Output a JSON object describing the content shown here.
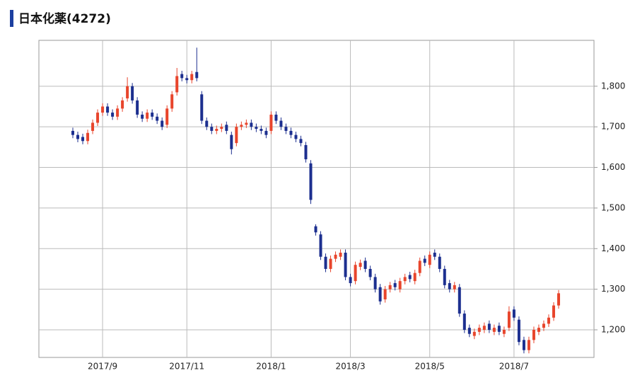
{
  "chart_data": {
    "type": "candlestick",
    "title": "日本化薬(4272)",
    "categories": [
      null,
      null,
      null,
      null,
      null,
      null,
      "2017/9",
      null,
      null,
      null,
      null,
      null,
      null,
      null,
      null,
      null,
      null,
      null,
      null,
      null,
      null,
      null,
      null,
      "2017/11",
      null,
      null,
      null,
      null,
      null,
      null,
      null,
      null,
      null,
      null,
      null,
      null,
      null,
      null,
      null,
      null,
      "2018/1",
      null,
      null,
      null,
      null,
      null,
      null,
      null,
      null,
      null,
      null,
      null,
      null,
      null,
      null,
      null,
      "2018/3",
      null,
      null,
      null,
      null,
      null,
      null,
      null,
      null,
      null,
      null,
      null,
      null,
      null,
      null,
      null,
      "2018/5",
      null,
      null,
      null,
      null,
      null,
      null,
      null,
      null,
      null,
      null,
      null,
      null,
      null,
      null,
      null,
      null,
      "2018/7",
      null,
      null,
      null,
      null,
      null,
      null,
      null,
      null,
      null
    ],
    "open": [
      1690,
      1680,
      1675,
      1665,
      1690,
      1710,
      1735,
      1750,
      1735,
      1725,
      1745,
      1770,
      1800,
      1765,
      1730,
      1720,
      1735,
      1725,
      1715,
      1705,
      1745,
      1785,
      1830,
      1820,
      1815,
      1835,
      1780,
      1715,
      1700,
      1690,
      1695,
      1705,
      1680,
      1660,
      1700,
      1705,
      1710,
      1700,
      1695,
      1690,
      1690,
      1730,
      1715,
      1700,
      1690,
      1680,
      1670,
      1655,
      1610,
      1455,
      1435,
      1380,
      1350,
      1375,
      1380,
      1390,
      1330,
      1320,
      1355,
      1370,
      1350,
      1330,
      1305,
      1275,
      1300,
      1315,
      1300,
      1320,
      1335,
      1320,
      1340,
      1375,
      1360,
      1390,
      1380,
      1350,
      1315,
      1300,
      1305,
      1240,
      1205,
      1185,
      1195,
      1200,
      1215,
      1195,
      1210,
      1190,
      1205,
      1250,
      1225,
      1175,
      1150,
      1175,
      1195,
      1205,
      1215,
      1230,
      1260
    ],
    "high": [
      1698,
      1688,
      1683,
      1693,
      1718,
      1743,
      1758,
      1758,
      1743,
      1753,
      1773,
      1822,
      1808,
      1773,
      1738,
      1743,
      1743,
      1733,
      1723,
      1753,
      1788,
      1845,
      1838,
      1828,
      1838,
      1895,
      1788,
      1723,
      1708,
      1703,
      1708,
      1713,
      1688,
      1708,
      1713,
      1718,
      1718,
      1708,
      1703,
      1698,
      1738,
      1738,
      1723,
      1708,
      1698,
      1688,
      1678,
      1663,
      1618,
      1460,
      1443,
      1388,
      1383,
      1393,
      1398,
      1398,
      1338,
      1368,
      1373,
      1378,
      1358,
      1338,
      1313,
      1308,
      1318,
      1323,
      1328,
      1338,
      1343,
      1348,
      1378,
      1383,
      1393,
      1398,
      1388,
      1358,
      1323,
      1318,
      1313,
      1248,
      1213,
      1203,
      1213,
      1218,
      1223,
      1213,
      1218,
      1208,
      1258,
      1258,
      1233,
      1183,
      1183,
      1208,
      1213,
      1223,
      1238,
      1268,
      1298
    ],
    "low": [
      1672,
      1662,
      1657,
      1657,
      1682,
      1702,
      1727,
      1727,
      1717,
      1717,
      1737,
      1762,
      1757,
      1722,
      1712,
      1712,
      1717,
      1707,
      1692,
      1697,
      1737,
      1777,
      1812,
      1807,
      1807,
      1812,
      1707,
      1692,
      1682,
      1682,
      1687,
      1682,
      1632,
      1652,
      1692,
      1697,
      1692,
      1687,
      1682,
      1672,
      1682,
      1707,
      1692,
      1682,
      1672,
      1662,
      1652,
      1612,
      1510,
      1432,
      1372,
      1342,
      1342,
      1367,
      1372,
      1322,
      1307,
      1312,
      1347,
      1342,
      1322,
      1292,
      1262,
      1267,
      1292,
      1297,
      1292,
      1312,
      1317,
      1312,
      1332,
      1357,
      1352,
      1372,
      1342,
      1302,
      1292,
      1292,
      1232,
      1192,
      1182,
      1177,
      1187,
      1192,
      1192,
      1187,
      1187,
      1182,
      1197,
      1222,
      1162,
      1142,
      1142,
      1167,
      1187,
      1197,
      1207,
      1222,
      1252
    ],
    "close": [
      1680,
      1670,
      1665,
      1685,
      1710,
      1735,
      1750,
      1735,
      1725,
      1745,
      1765,
      1800,
      1765,
      1730,
      1720,
      1735,
      1725,
      1715,
      1700,
      1745,
      1780,
      1825,
      1820,
      1815,
      1830,
      1820,
      1715,
      1700,
      1690,
      1695,
      1700,
      1690,
      1645,
      1700,
      1705,
      1710,
      1700,
      1695,
      1690,
      1680,
      1730,
      1715,
      1700,
      1690,
      1680,
      1670,
      1660,
      1620,
      1520,
      1440,
      1380,
      1350,
      1375,
      1385,
      1390,
      1330,
      1315,
      1360,
      1365,
      1350,
      1330,
      1300,
      1270,
      1300,
      1310,
      1305,
      1320,
      1330,
      1325,
      1340,
      1370,
      1365,
      1385,
      1380,
      1350,
      1310,
      1300,
      1310,
      1240,
      1200,
      1190,
      1195,
      1205,
      1210,
      1200,
      1205,
      1195,
      1200,
      1245,
      1230,
      1170,
      1150,
      1175,
      1200,
      1205,
      1215,
      1230,
      1260,
      1290
    ],
    "up_color": "#e8452c",
    "down_color": "#1c2f8f",
    "ylim": [
      1132,
      1913
    ],
    "yticks": [
      {
        "value": 1200,
        "label": "1,200"
      },
      {
        "value": 1300,
        "label": "1,300"
      },
      {
        "value": 1400,
        "label": "1,400"
      },
      {
        "value": 1500,
        "label": "1,500"
      },
      {
        "value": 1600,
        "label": "1,600"
      },
      {
        "value": 1700,
        "label": "1,700"
      },
      {
        "value": 1800,
        "label": "1,800"
      }
    ],
    "grid": true
  }
}
